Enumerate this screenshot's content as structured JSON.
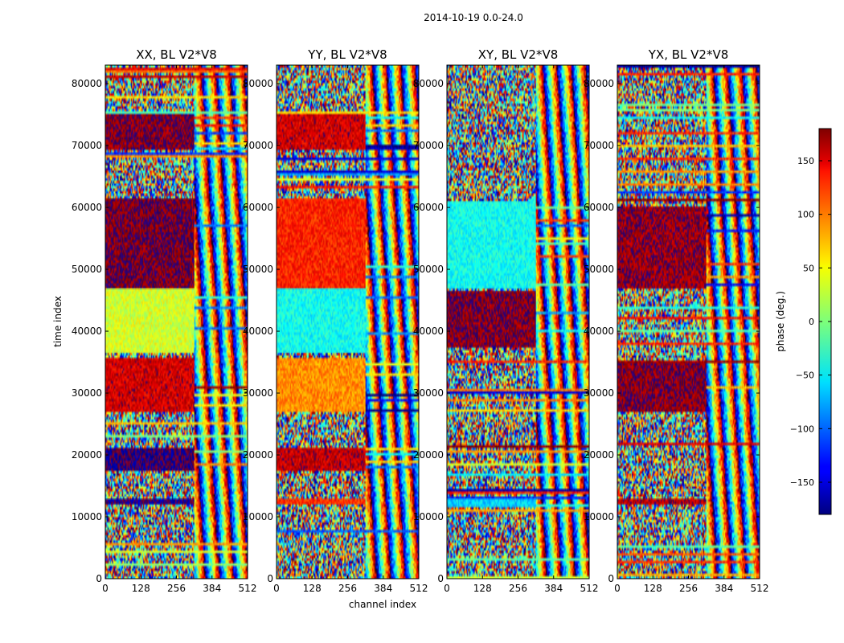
{
  "figure": {
    "suptitle": "2014-10-19 0.0-24.0",
    "xlabel": "channel index",
    "ylabel": "time index"
  },
  "chart_data": {
    "type": "heatmap",
    "panels": [
      {
        "title": "XX, BL V2*V8"
      },
      {
        "title": "YY, BL V2*V8"
      },
      {
        "title": "XY, BL V2*V8"
      },
      {
        "title": "YX, BL V2*V8"
      }
    ],
    "xlim": [
      0,
      512
    ],
    "ylim": [
      0,
      83000
    ],
    "x_ticks": [
      0,
      128,
      256,
      384,
      512
    ],
    "y_ticks": [
      0,
      10000,
      20000,
      30000,
      40000,
      50000,
      60000,
      70000,
      80000
    ],
    "colorbar": {
      "label": "phase (deg.)",
      "range": [
        -180,
        180
      ],
      "ticks": [
        -150,
        -100,
        -50,
        0,
        50,
        100,
        150
      ],
      "colormap": "jet"
    },
    "phase_blocks": [
      {
        "panel": "XX",
        "y0": 12000,
        "y1": 13000,
        "x0": 0,
        "x1": 320,
        "phase": -172
      },
      {
        "panel": "XX",
        "y0": 17500,
        "y1": 21000,
        "x0": 0,
        "x1": 320,
        "phase": -178
      },
      {
        "panel": "XX",
        "y0": 27000,
        "y1": 35500,
        "x0": 0,
        "x1": 320,
        "phase": 150
      },
      {
        "panel": "XX",
        "y0": 36500,
        "y1": 47000,
        "x0": 0,
        "x1": 320,
        "phase": 30
      },
      {
        "panel": "XX",
        "y0": 47000,
        "y1": 61500,
        "x0": 0,
        "x1": 320,
        "phase": 178
      },
      {
        "panel": "XX",
        "y0": 69500,
        "y1": 75000,
        "x0": 0,
        "x1": 320,
        "phase": 175
      },
      {
        "panel": "YY",
        "y0": 12000,
        "y1": 13000,
        "x0": 0,
        "x1": 320,
        "phase": 120
      },
      {
        "panel": "YY",
        "y0": 17500,
        "y1": 21000,
        "x0": 0,
        "x1": 320,
        "phase": 155
      },
      {
        "panel": "YY",
        "y0": 27000,
        "y1": 35500,
        "x0": 0,
        "x1": 320,
        "phase": 85
      },
      {
        "panel": "YY",
        "y0": 36500,
        "y1": 47000,
        "x0": 0,
        "x1": 320,
        "phase": -40
      },
      {
        "panel": "YY",
        "y0": 47000,
        "y1": 61500,
        "x0": 0,
        "x1": 320,
        "phase": 125
      },
      {
        "panel": "YY",
        "y0": 69500,
        "y1": 75000,
        "x0": 0,
        "x1": 320,
        "phase": 150
      },
      {
        "panel": "XY",
        "y0": 11500,
        "y1": 13000,
        "x0": 0,
        "x1": 320,
        "phase": -60
      },
      {
        "panel": "XY",
        "y0": 37500,
        "y1": 46500,
        "x0": 0,
        "x1": 320,
        "phase": 175
      },
      {
        "panel": "XY",
        "y0": 47000,
        "y1": 61000,
        "x0": 0,
        "x1": 320,
        "phase": -40
      },
      {
        "panel": "YX",
        "y0": 12000,
        "y1": 13000,
        "x0": 0,
        "x1": 320,
        "phase": 160
      },
      {
        "panel": "YX",
        "y0": 27000,
        "y1": 35000,
        "x0": 0,
        "x1": 320,
        "phase": 175
      },
      {
        "panel": "YX",
        "y0": 47000,
        "y1": 60000,
        "x0": 0,
        "x1": 320,
        "phase": 170
      }
    ]
  }
}
